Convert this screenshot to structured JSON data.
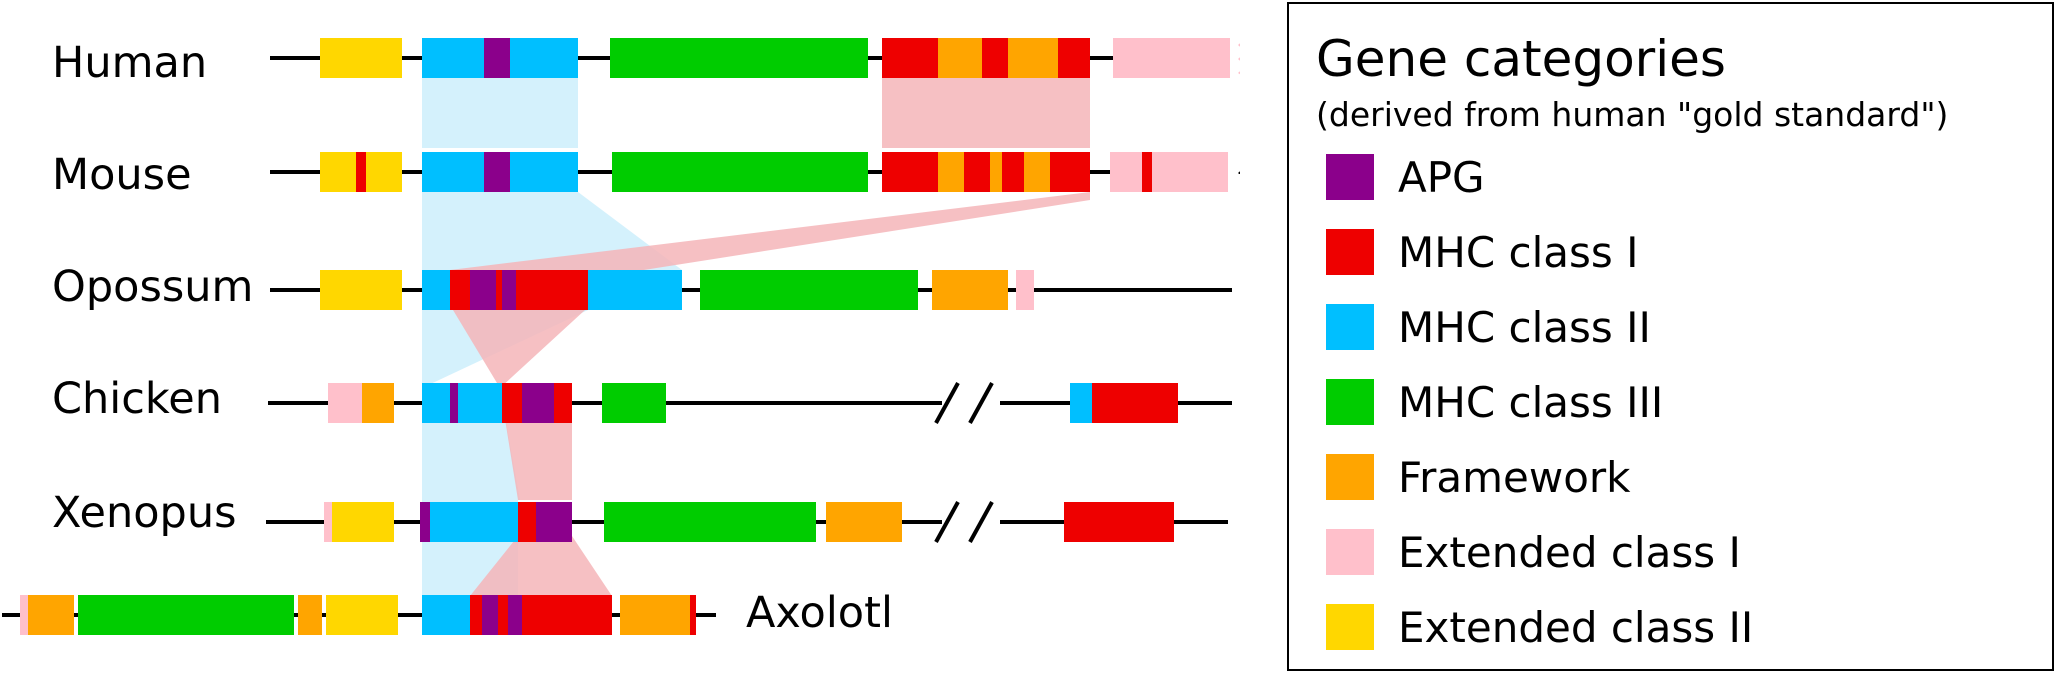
{
  "colors": {
    "apg": "#8B008B",
    "mhc1": "#EE0000",
    "mhc2": "#00BFFF",
    "mhc3": "#00CC00",
    "framework": "#FFA500",
    "ext1": "#FFC0CB",
    "ext2": "#FFD700",
    "blue_band": "#CCEFFB",
    "red_band": "#F4B5B9"
  },
  "species": [
    "Human",
    "Mouse",
    "Opossum",
    "Chicken",
    "Xenopus",
    "Axolotl"
  ],
  "legend": {
    "title": "Gene categories",
    "subtitle": "(derived from human \"gold standard\")",
    "items": [
      {
        "key": "apg",
        "label": "APG"
      },
      {
        "key": "mhc1",
        "label": "MHC class I"
      },
      {
        "key": "mhc2",
        "label": "MHC class II"
      },
      {
        "key": "mhc3",
        "label": "MHC class III"
      },
      {
        "key": "framework",
        "label": "Framework"
      },
      {
        "key": "ext1",
        "label": "Extended class I"
      },
      {
        "key": "ext2",
        "label": "Extended class II"
      }
    ]
  }
}
